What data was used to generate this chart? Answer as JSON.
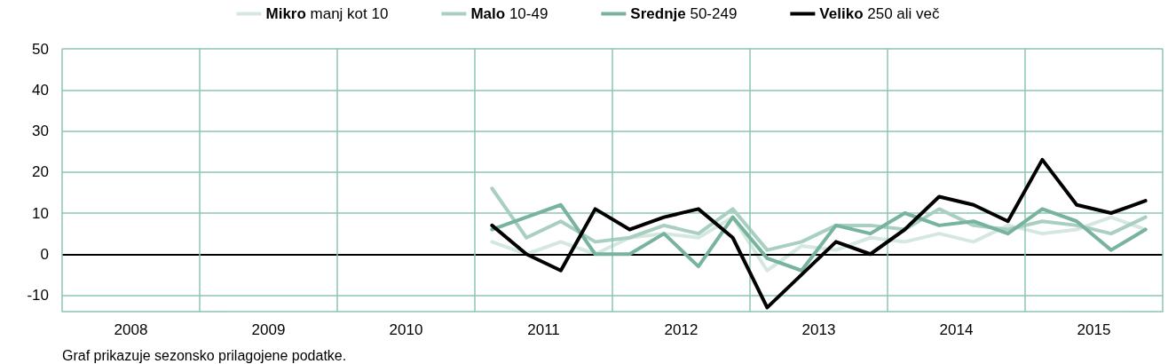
{
  "chart_data": {
    "type": "line",
    "x": [
      2011.125,
      2011.375,
      2011.625,
      2011.875,
      2012.125,
      2012.375,
      2012.625,
      2012.875,
      2013.125,
      2013.375,
      2013.625,
      2013.875,
      2014.125,
      2014.375,
      2014.625,
      2014.875,
      2015.125,
      2015.375,
      2015.625,
      2015.875
    ],
    "series": [
      {
        "name": "Mikro manj kot 10",
        "color": "#d5e8e0",
        "values": [
          3,
          0,
          3,
          0,
          4,
          5,
          4,
          9,
          -4,
          2,
          1,
          4,
          3,
          5,
          3,
          7,
          5,
          6,
          9,
          6
        ]
      },
      {
        "name": "Malo 10-49",
        "color": "#a8cfc0",
        "values": [
          16,
          4,
          8,
          3,
          4,
          7,
          5,
          11,
          1,
          3,
          7,
          7,
          6,
          11,
          7,
          6,
          8,
          7,
          5,
          9
        ]
      },
      {
        "name": "Srednje 50-249",
        "color": "#78b39e",
        "values": [
          6,
          9,
          12,
          0,
          0,
          5,
          -3,
          9,
          -1,
          -4,
          7,
          5,
          10,
          7,
          8,
          5,
          11,
          8,
          1,
          6
        ]
      },
      {
        "name": "Veliko 250 ali več",
        "color": "#000000",
        "values": [
          7,
          0,
          -4,
          11,
          6,
          9,
          11,
          4,
          -13,
          -5,
          3,
          0,
          6,
          14,
          12,
          8,
          23,
          12,
          10,
          13
        ]
      }
    ],
    "xlim": [
      2008,
      2016
    ],
    "xticks": [
      {
        "value": 2008,
        "label": null
      },
      {
        "value": 2008.5,
        "label": "2008"
      },
      {
        "value": 2009,
        "label": null
      },
      {
        "value": 2009.5,
        "label": "2009"
      },
      {
        "value": 2010,
        "label": null
      },
      {
        "value": 2010.5,
        "label": "2010"
      },
      {
        "value": 2011,
        "label": null
      },
      {
        "value": 2011.5,
        "label": "2011"
      },
      {
        "value": 2012,
        "label": null
      },
      {
        "value": 2012.5,
        "label": "2012"
      },
      {
        "value": 2013,
        "label": null
      },
      {
        "value": 2013.5,
        "label": "2013"
      },
      {
        "value": 2014,
        "label": null
      },
      {
        "value": 2014.5,
        "label": "2014"
      },
      {
        "value": 2015,
        "label": null
      },
      {
        "value": 2015.5,
        "label": "2015"
      },
      {
        "value": 2016,
        "label": null
      }
    ],
    "ylim": [
      -14,
      50
    ],
    "yticks": [
      -10,
      0,
      10,
      20,
      30,
      40,
      50
    ],
    "ref_lines": [
      {
        "axis": "y",
        "value": 0,
        "color": "#000000"
      }
    ],
    "annotations": [
      "Graf prikazuje sezonsko prilagojene podatke."
    ],
    "grid": true,
    "legend": "top",
    "marker": "none",
    "line_style": "solid"
  }
}
